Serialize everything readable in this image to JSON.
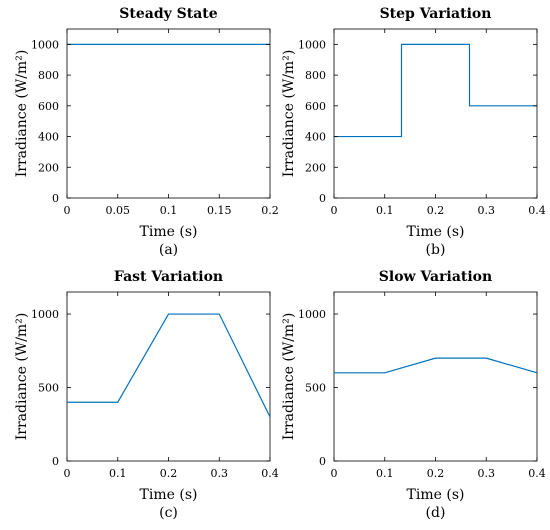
{
  "colors": {
    "series": "#0072BD",
    "axes": "#000000"
  },
  "chart_data": [
    {
      "type": "line",
      "title": "Steady State",
      "xlabel": "Time (s)",
      "ylabel": "Irradiance (W/m²)",
      "caption": "(a)",
      "xlim": [
        0,
        0.2
      ],
      "ylim": [
        0,
        1100
      ],
      "xticks": [
        0,
        0.05,
        0.1,
        0.15,
        0.2
      ],
      "xtick_labels": [
        "0",
        "0.05",
        "0.1",
        "0.15",
        "0.2"
      ],
      "yticks": [
        0,
        200,
        400,
        600,
        800,
        1000
      ],
      "ytick_labels": [
        "0",
        "200",
        "400",
        "600",
        "800",
        "1000"
      ],
      "series": [
        {
          "x": [
            0,
            0.2
          ],
          "y": [
            1000,
            1000
          ]
        }
      ]
    },
    {
      "type": "line",
      "title": "Step Variation",
      "xlabel": "Time (s)",
      "ylabel": "Irradiance (W/m²)",
      "caption": "(b)",
      "xlim": [
        0,
        0.4
      ],
      "ylim": [
        0,
        1100
      ],
      "xticks": [
        0,
        0.1,
        0.2,
        0.3,
        0.4
      ],
      "xtick_labels": [
        "0",
        "0.1",
        "0.2",
        "0.3",
        "0.4"
      ],
      "yticks": [
        0,
        200,
        400,
        600,
        800,
        1000
      ],
      "ytick_labels": [
        "0",
        "200",
        "400",
        "600",
        "800",
        "1000"
      ],
      "series": [
        {
          "x": [
            0,
            0.133,
            0.133,
            0.267,
            0.267,
            0.4
          ],
          "y": [
            400,
            400,
            1000,
            1000,
            600,
            600
          ]
        }
      ]
    },
    {
      "type": "line",
      "title": "Fast Variation",
      "xlabel": "Time (s)",
      "ylabel": "Irradiance (W/m²)",
      "caption": "(c)",
      "xlim": [
        0,
        0.4
      ],
      "ylim": [
        0,
        1150
      ],
      "xticks": [
        0,
        0.1,
        0.2,
        0.3,
        0.4
      ],
      "xtick_labels": [
        "0",
        "0.1",
        "0.2",
        "0.3",
        "0.4"
      ],
      "yticks": [
        0,
        500,
        1000
      ],
      "ytick_labels": [
        "0",
        "500",
        "1000"
      ],
      "series": [
        {
          "x": [
            0,
            0.1,
            0.2,
            0.3,
            0.4
          ],
          "y": [
            400,
            400,
            1000,
            1000,
            300
          ]
        }
      ]
    },
    {
      "type": "line",
      "title": "Slow Variation",
      "xlabel": "Time (s)",
      "ylabel": "Irradiance (W/m²)",
      "caption": "(d)",
      "xlim": [
        0,
        0.4
      ],
      "ylim": [
        0,
        1150
      ],
      "xticks": [
        0,
        0.1,
        0.2,
        0.3,
        0.4
      ],
      "xtick_labels": [
        "0",
        "0.1",
        "0.2",
        "0.3",
        "0.4"
      ],
      "yticks": [
        0,
        500,
        1000
      ],
      "ytick_labels": [
        "0",
        "500",
        "1000"
      ],
      "series": [
        {
          "x": [
            0,
            0.1,
            0.2,
            0.3,
            0.4
          ],
          "y": [
            600,
            600,
            700,
            700,
            600
          ]
        }
      ]
    }
  ]
}
